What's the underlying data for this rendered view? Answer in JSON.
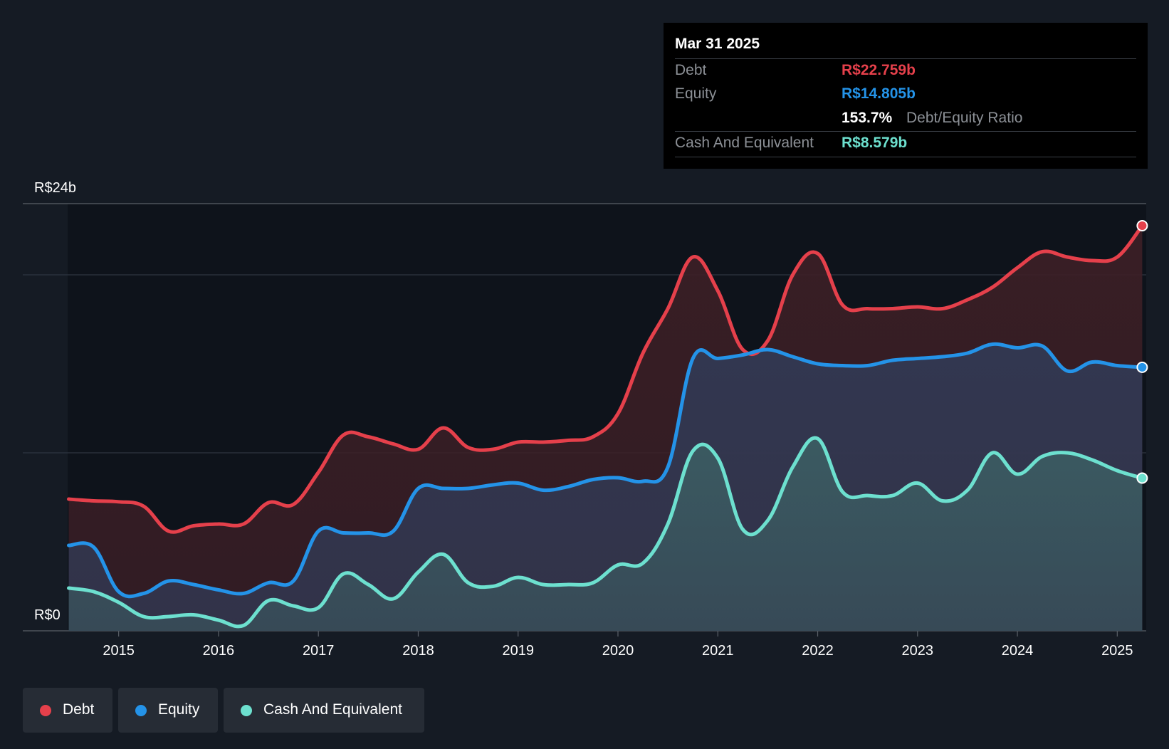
{
  "colors": {
    "background": "#151b24",
    "debt": "#e5404b",
    "equity": "#2493e8",
    "cash": "#6de0cf",
    "debt_fill": "#3d1f26",
    "equity_fill": "#323a55",
    "cash_fill": "#3b5c62"
  },
  "tooltip": {
    "date": "Mar 31 2025",
    "debt_label": "Debt",
    "debt_value": "R$22.759b",
    "equity_label": "Equity",
    "equity_value": "R$14.805b",
    "ratio_value": "153.7%",
    "ratio_label": "Debt/Equity Ratio",
    "cash_label": "Cash And Equivalent",
    "cash_value": "R$8.579b"
  },
  "legend": [
    {
      "label": "Debt",
      "color": "#e5404b"
    },
    {
      "label": "Equity",
      "color": "#2493e8"
    },
    {
      "label": "Cash And Equivalent",
      "color": "#6de0cf"
    }
  ],
  "chart_data": {
    "type": "area",
    "title": "",
    "xlabel": "",
    "ylabel": "",
    "y_top_label": "R$24b",
    "y_bottom_label": "R$0",
    "ylim": [
      0,
      24
    ],
    "xlim": [
      2014.04,
      2025.29
    ],
    "x_ticks": [
      2015,
      2016,
      2017,
      2018,
      2019,
      2020,
      2021,
      2022,
      2023,
      2024,
      2025
    ],
    "x_tick_labels": [
      "2015",
      "2016",
      "2017",
      "2018",
      "2019",
      "2020",
      "2021",
      "2022",
      "2023",
      "2024",
      "2025"
    ],
    "grid": true,
    "legend_position": "bottom-left",
    "series": [
      {
        "name": "Debt",
        "color": "#e5404b",
        "points": [
          [
            2014.5,
            7.4
          ],
          [
            2014.75,
            7.3
          ],
          [
            2015.0,
            7.25
          ],
          [
            2015.25,
            7.0
          ],
          [
            2015.5,
            5.6
          ],
          [
            2015.75,
            5.9
          ],
          [
            2016.0,
            6.0
          ],
          [
            2016.25,
            6.0
          ],
          [
            2016.5,
            7.2
          ],
          [
            2016.75,
            7.1
          ],
          [
            2017.0,
            8.9
          ],
          [
            2017.25,
            11.0
          ],
          [
            2017.5,
            10.9
          ],
          [
            2017.75,
            10.5
          ],
          [
            2018.0,
            10.2
          ],
          [
            2018.25,
            11.4
          ],
          [
            2018.5,
            10.3
          ],
          [
            2018.75,
            10.2
          ],
          [
            2019.0,
            10.6
          ],
          [
            2019.25,
            10.6
          ],
          [
            2019.5,
            10.7
          ],
          [
            2019.75,
            10.9
          ],
          [
            2020.0,
            12.2
          ],
          [
            2020.25,
            15.6
          ],
          [
            2020.5,
            18.1
          ],
          [
            2020.75,
            21.0
          ],
          [
            2021.0,
            19.1
          ],
          [
            2021.25,
            15.8
          ],
          [
            2021.5,
            16.3
          ],
          [
            2021.75,
            20.0
          ],
          [
            2022.0,
            21.2
          ],
          [
            2022.25,
            18.3
          ],
          [
            2022.5,
            18.1
          ],
          [
            2022.75,
            18.1
          ],
          [
            2023.0,
            18.2
          ],
          [
            2023.25,
            18.1
          ],
          [
            2023.5,
            18.6
          ],
          [
            2023.75,
            19.3
          ],
          [
            2024.0,
            20.4
          ],
          [
            2024.25,
            21.3
          ],
          [
            2024.5,
            21.0
          ],
          [
            2024.75,
            20.8
          ],
          [
            2025.0,
            21.0
          ],
          [
            2025.25,
            22.759
          ]
        ]
      },
      {
        "name": "Equity",
        "color": "#2493e8",
        "points": [
          [
            2014.5,
            4.8
          ],
          [
            2014.75,
            4.7
          ],
          [
            2015.0,
            2.2
          ],
          [
            2015.25,
            2.1
          ],
          [
            2015.5,
            2.8
          ],
          [
            2015.75,
            2.6
          ],
          [
            2016.0,
            2.3
          ],
          [
            2016.25,
            2.1
          ],
          [
            2016.5,
            2.7
          ],
          [
            2016.75,
            2.8
          ],
          [
            2017.0,
            5.6
          ],
          [
            2017.25,
            5.5
          ],
          [
            2017.5,
            5.5
          ],
          [
            2017.75,
            5.6
          ],
          [
            2018.0,
            8.0
          ],
          [
            2018.25,
            8.0
          ],
          [
            2018.5,
            8.0
          ],
          [
            2018.75,
            8.2
          ],
          [
            2019.0,
            8.3
          ],
          [
            2019.25,
            7.9
          ],
          [
            2019.5,
            8.1
          ],
          [
            2019.75,
            8.5
          ],
          [
            2020.0,
            8.6
          ],
          [
            2020.25,
            8.4
          ],
          [
            2020.5,
            9.2
          ],
          [
            2020.75,
            15.3
          ],
          [
            2021.0,
            15.3
          ],
          [
            2021.25,
            15.5
          ],
          [
            2021.5,
            15.8
          ],
          [
            2021.75,
            15.4
          ],
          [
            2022.0,
            15.0
          ],
          [
            2022.25,
            14.9
          ],
          [
            2022.5,
            14.9
          ],
          [
            2022.75,
            15.2
          ],
          [
            2023.0,
            15.3
          ],
          [
            2023.25,
            15.4
          ],
          [
            2023.5,
            15.6
          ],
          [
            2023.75,
            16.1
          ],
          [
            2024.0,
            15.9
          ],
          [
            2024.25,
            16.0
          ],
          [
            2024.5,
            14.6
          ],
          [
            2024.75,
            15.1
          ],
          [
            2025.0,
            14.9
          ],
          [
            2025.25,
            14.805
          ]
        ]
      },
      {
        "name": "Cash And Equivalent",
        "color": "#6de0cf",
        "points": [
          [
            2014.5,
            2.4
          ],
          [
            2014.75,
            2.2
          ],
          [
            2015.0,
            1.6
          ],
          [
            2015.25,
            0.8
          ],
          [
            2015.5,
            0.8
          ],
          [
            2015.75,
            0.9
          ],
          [
            2016.0,
            0.6
          ],
          [
            2016.25,
            0.3
          ],
          [
            2016.5,
            1.7
          ],
          [
            2016.75,
            1.4
          ],
          [
            2017.0,
            1.3
          ],
          [
            2017.25,
            3.2
          ],
          [
            2017.5,
            2.6
          ],
          [
            2017.75,
            1.8
          ],
          [
            2018.0,
            3.3
          ],
          [
            2018.25,
            4.3
          ],
          [
            2018.5,
            2.7
          ],
          [
            2018.75,
            2.5
          ],
          [
            2019.0,
            3.0
          ],
          [
            2019.25,
            2.6
          ],
          [
            2019.5,
            2.6
          ],
          [
            2019.75,
            2.7
          ],
          [
            2020.0,
            3.7
          ],
          [
            2020.25,
            3.8
          ],
          [
            2020.5,
            6.0
          ],
          [
            2020.75,
            10.1
          ],
          [
            2021.0,
            9.7
          ],
          [
            2021.25,
            5.7
          ],
          [
            2021.5,
            6.2
          ],
          [
            2021.75,
            9.2
          ],
          [
            2022.0,
            10.8
          ],
          [
            2022.25,
            7.8
          ],
          [
            2022.5,
            7.6
          ],
          [
            2022.75,
            7.6
          ],
          [
            2023.0,
            8.3
          ],
          [
            2023.25,
            7.3
          ],
          [
            2023.5,
            7.9
          ],
          [
            2023.75,
            10.0
          ],
          [
            2024.0,
            8.8
          ],
          [
            2024.25,
            9.8
          ],
          [
            2024.5,
            10.0
          ],
          [
            2024.75,
            9.6
          ],
          [
            2025.0,
            9.0
          ],
          [
            2025.25,
            8.579
          ]
        ]
      }
    ]
  }
}
